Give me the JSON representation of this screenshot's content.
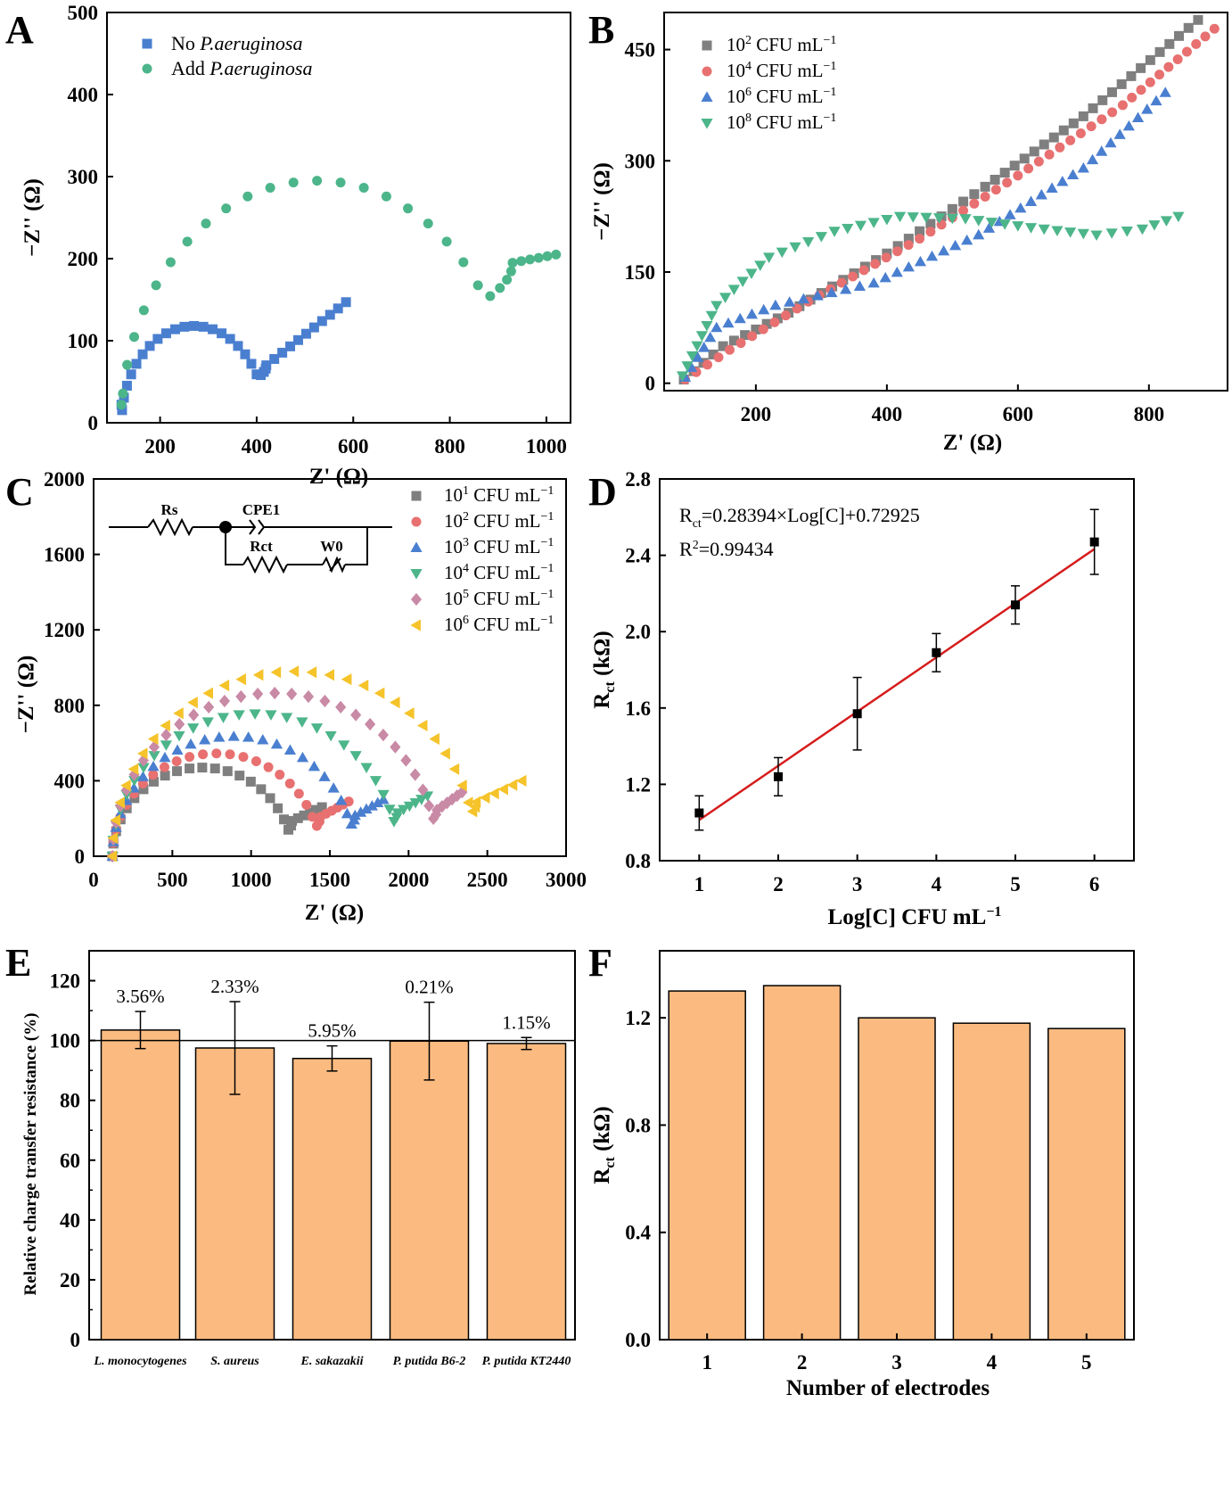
{
  "colors": {
    "axis": "#000000",
    "gray": "#7f7f7f",
    "red": "#e87070",
    "blue": "#4a7fd0",
    "green": "#4cb58a",
    "pink": "#c98aa6",
    "yellow": "#f5c32a",
    "fitline": "#d61c1c",
    "bar": "#fbbb80"
  },
  "chart_data": [
    {
      "panel": "A",
      "type": "scatter",
      "xlabel": "Z' (Ω)",
      "ylabel": "−Z'' (Ω)",
      "xlim": [
        90,
        1050
      ],
      "ylim": [
        0,
        500
      ],
      "xticks": [
        "200",
        "400",
        "600",
        "800",
        "1000"
      ],
      "yticks": [
        "0",
        "100",
        "200",
        "300",
        "400",
        "500"
      ],
      "legend": "top-left",
      "series": [
        {
          "name": "No P.aeruginosa",
          "legend_prefix": "No ",
          "legend_italic": "P.aeruginosa",
          "marker": "square",
          "color": "blue",
          "arc": {
            "x0": 120,
            "x1": 420,
            "peak": 118,
            "tail_x": 585,
            "tail_y": 147
          }
        },
        {
          "name": "Add P.aeruginosa",
          "legend_prefix": "Add ",
          "legend_italic": "P.aeruginosa",
          "marker": "circle",
          "color": "green",
          "arc": {
            "x0": 120,
            "x1": 930,
            "peak": 295,
            "tail_x": 1020,
            "tail_y": 205
          }
        }
      ]
    },
    {
      "panel": "B",
      "type": "scatter",
      "xlabel": "Z' (Ω)",
      "ylabel": "−Z'' (Ω)",
      "xlim": [
        60,
        920
      ],
      "ylim": [
        -10,
        500
      ],
      "xticks": [
        "200",
        "400",
        "600",
        "800"
      ],
      "yticks": [
        "0",
        "150",
        "300",
        "450"
      ],
      "legend": "top-left",
      "series": [
        {
          "name": "10² CFU mL⁻¹",
          "base": "10",
          "exp": "2",
          "unit": " CFU mL",
          "unit_exp": "−1",
          "marker": "square",
          "color": "gray",
          "end": [
            875,
            490
          ]
        },
        {
          "name": "10⁴ CFU mL⁻¹",
          "base": "10",
          "exp": "4",
          "unit": " CFU mL",
          "unit_exp": "−1",
          "marker": "circle",
          "color": "red",
          "end": [
            900,
            478
          ]
        },
        {
          "name": "10⁶ CFU mL⁻¹",
          "base": "10",
          "exp": "6",
          "unit": " CFU mL",
          "unit_exp": "−1",
          "marker": "triangle-up",
          "color": "blue",
          "end": [
            825,
            392
          ]
        },
        {
          "name": "10⁸ CFU mL⁻¹",
          "base": "10",
          "exp": "8",
          "unit": " CFU mL",
          "unit_exp": "−1",
          "marker": "triangle-down",
          "color": "green",
          "end": [
            845,
            225
          ]
        }
      ]
    },
    {
      "panel": "C",
      "type": "scatter",
      "xlabel": "Z' (Ω)",
      "ylabel": "−Z'' (Ω)",
      "xlim": [
        0,
        3000
      ],
      "ylim": [
        0,
        2000
      ],
      "xticks": [
        "0",
        "500",
        "1000",
        "1500",
        "2000",
        "2500",
        "3000"
      ],
      "yticks": [
        "0",
        "400",
        "800",
        "1200",
        "1600",
        "2000"
      ],
      "legend": "top-right",
      "circuit": {
        "rs": "Rs",
        "cpe": "CPE1",
        "rct": "Rct",
        "w": "W0"
      },
      "series": [
        {
          "name": "10¹ CFU mL⁻¹",
          "base": "10",
          "exp": "1",
          "unit": " CFU mL",
          "unit_exp": "−1",
          "marker": "square",
          "color": "gray",
          "arc": [
            120,
            1260,
            470
          ],
          "tail": [
            1450,
            260
          ]
        },
        {
          "name": "10² CFU mL⁻¹",
          "base": "10",
          "exp": "2",
          "unit": " CFU mL",
          "unit_exp": "−1",
          "marker": "circle",
          "color": "red",
          "arc": [
            120,
            1440,
            545
          ],
          "tail": [
            1620,
            290
          ]
        },
        {
          "name": "10³ CFU mL⁻¹",
          "base": "10",
          "exp": "3",
          "unit": " CFU mL",
          "unit_exp": "−1",
          "marker": "triangle-up",
          "color": "blue",
          "arc": [
            120,
            1660,
            635
          ],
          "tail": [
            1840,
            300
          ]
        },
        {
          "name": "10⁴ CFU mL⁻¹",
          "base": "10",
          "exp": "4",
          "unit": " CFU mL",
          "unit_exp": "−1",
          "marker": "triangle-down",
          "color": "green",
          "arc": [
            120,
            1930,
            755
          ],
          "tail": [
            2120,
            320
          ]
        },
        {
          "name": "10⁵ CFU mL⁻¹",
          "base": "10",
          "exp": "5",
          "unit": " CFU mL",
          "unit_exp": "−1",
          "marker": "diamond",
          "color": "pink",
          "arc": [
            120,
            2180,
            865
          ],
          "tail": [
            2340,
            340
          ]
        },
        {
          "name": "10⁶ CFU mL⁻¹",
          "base": "10",
          "exp": "6",
          "unit": " CFU mL",
          "unit_exp": "−1",
          "marker": "triangle-left",
          "color": "yellow",
          "arc": [
            120,
            2430,
            980
          ],
          "tail": [
            2720,
            400
          ]
        }
      ]
    },
    {
      "panel": "D",
      "type": "scatter",
      "xlabel": "Log[C] CFU mL⁻¹",
      "ylabel": "Rct (kΩ)",
      "xlim": [
        0.5,
        6.5
      ],
      "ylim": [
        0.8,
        2.8
      ],
      "xticks": [
        "1",
        "2",
        "3",
        "4",
        "5",
        "6"
      ],
      "yticks": [
        "0.8",
        "1.2",
        "1.6",
        "2.0",
        "2.4",
        "2.8"
      ],
      "equation": "Rct=0.28394×Log[C]+0.72925",
      "r_squared": "R²=0.99434",
      "fit": {
        "slope": 0.28394,
        "intercept": 0.72925
      },
      "x": [
        1,
        2,
        3,
        4,
        5,
        6
      ],
      "y": [
        1.05,
        1.24,
        1.57,
        1.89,
        2.14,
        2.47
      ],
      "err": [
        0.09,
        0.1,
        0.19,
        0.1,
        0.1,
        0.17
      ]
    },
    {
      "panel": "E",
      "type": "bar",
      "ylabel": "Relative charge transfer resistance (%)",
      "ylim": [
        0,
        130
      ],
      "yticks": [
        "0",
        "20",
        "40",
        "60",
        "80",
        "100",
        "120"
      ],
      "reference_line": 100,
      "categories": [
        "L. monocytogenes",
        "S. aureus",
        "E. sakazakii",
        "P. putida B6-2",
        "P. putida KT2440"
      ],
      "values": [
        103.5,
        97.5,
        94.0,
        99.8,
        99.0
      ],
      "err": [
        6.2,
        15.5,
        4.2,
        13.0,
        2.0
      ],
      "labels": [
        "3.56%",
        "2.33%",
        "5.95%",
        "0.21%",
        "1.15%"
      ]
    },
    {
      "panel": "F",
      "type": "bar",
      "xlabel": "Number of electrodes",
      "ylabel": "Rct (kΩ)",
      "ylim": [
        0,
        1.45
      ],
      "yticks": [
        "0.0",
        "0.4",
        "0.8",
        "1.2"
      ],
      "categories": [
        "1",
        "2",
        "3",
        "4",
        "5"
      ],
      "values": [
        1.3,
        1.32,
        1.2,
        1.18,
        1.16
      ]
    }
  ]
}
